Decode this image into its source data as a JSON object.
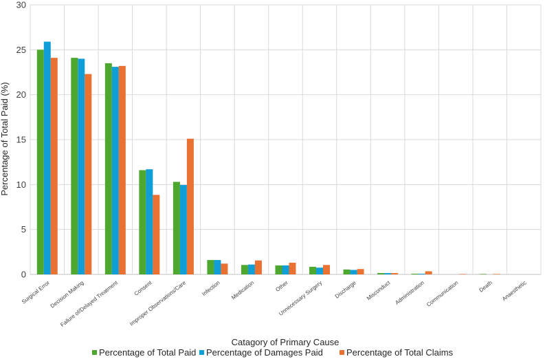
{
  "chart_data": {
    "type": "bar",
    "title": "",
    "xlabel": "Catagory of Primary Cause",
    "ylabel": "Percentage of Total Paid (%)",
    "ylim": [
      0,
      30
    ],
    "yticks": [
      0,
      5,
      10,
      15,
      20,
      25,
      30
    ],
    "grid": true,
    "legend_position": "bottom",
    "categories": [
      "Surgical Error",
      "Decision Making",
      "Failure of/Delayed Treatment",
      "Consent",
      "Improper Observations/Care",
      "Infection",
      "Medication",
      "Other",
      "Unnecessary Surgery",
      "Discharge",
      "Misconduct",
      "Administration",
      "Communication",
      "Death",
      "Anaesthetic"
    ],
    "series": [
      {
        "name": "Percentage of Total Paid",
        "color": "#4ea72e",
        "values": [
          25.0,
          24.1,
          23.5,
          11.6,
          10.3,
          1.6,
          1.05,
          1.0,
          0.85,
          0.55,
          0.15,
          0.08,
          0.0,
          0.05,
          0.0
        ]
      },
      {
        "name": "Percentage of Damages Paid",
        "color": "#0f9ed5",
        "values": [
          25.9,
          24.0,
          23.1,
          11.7,
          9.95,
          1.6,
          1.1,
          1.0,
          0.75,
          0.5,
          0.15,
          0.08,
          0.0,
          0.0,
          0.0
        ]
      },
      {
        "name": "Percentage of Total Claims",
        "color": "#e97132",
        "values": [
          24.1,
          22.3,
          23.2,
          8.85,
          15.1,
          1.2,
          1.55,
          1.3,
          1.05,
          0.6,
          0.15,
          0.35,
          0.05,
          0.05,
          0.0
        ]
      }
    ]
  }
}
